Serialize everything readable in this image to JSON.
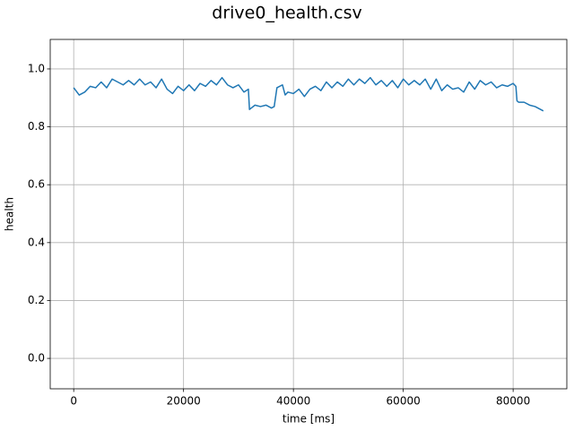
{
  "chart_data": {
    "type": "line",
    "title": "drive0_health.csv",
    "x_label": "time [ms]",
    "y_label": "health",
    "x": [
      0,
      1000,
      2000,
      3000,
      4000,
      5000,
      6000,
      7000,
      8000,
      9000,
      10000,
      11000,
      12000,
      13000,
      14000,
      15000,
      16000,
      17000,
      18000,
      19000,
      20000,
      21000,
      22000,
      23000,
      24000,
      25000,
      26000,
      27000,
      28000,
      29000,
      30000,
      31000,
      31800,
      32000,
      33000,
      34000,
      35000,
      36000,
      36500,
      37000,
      38000,
      38500,
      39000,
      40000,
      41000,
      42000,
      43000,
      44000,
      45000,
      46000,
      47000,
      48000,
      49000,
      50000,
      51000,
      52000,
      53000,
      54000,
      55000,
      56000,
      57000,
      58000,
      59000,
      60000,
      61000,
      62000,
      63000,
      64000,
      65000,
      66000,
      67000,
      68000,
      69000,
      70000,
      71000,
      72000,
      73000,
      74000,
      75000,
      76000,
      77000,
      78000,
      79000,
      80000,
      80500,
      80700,
      81000,
      82000,
      83000,
      84000,
      85000,
      85500
    ],
    "values": [
      0.935,
      0.91,
      0.92,
      0.94,
      0.935,
      0.955,
      0.935,
      0.965,
      0.955,
      0.945,
      0.96,
      0.945,
      0.965,
      0.945,
      0.955,
      0.935,
      0.965,
      0.93,
      0.915,
      0.94,
      0.925,
      0.945,
      0.925,
      0.95,
      0.94,
      0.96,
      0.945,
      0.97,
      0.945,
      0.935,
      0.945,
      0.92,
      0.93,
      0.86,
      0.875,
      0.87,
      0.875,
      0.865,
      0.87,
      0.935,
      0.945,
      0.91,
      0.92,
      0.915,
      0.93,
      0.905,
      0.93,
      0.94,
      0.925,
      0.955,
      0.935,
      0.955,
      0.94,
      0.965,
      0.945,
      0.965,
      0.95,
      0.97,
      0.945,
      0.96,
      0.94,
      0.96,
      0.935,
      0.965,
      0.945,
      0.96,
      0.945,
      0.965,
      0.93,
      0.965,
      0.925,
      0.945,
      0.93,
      0.935,
      0.92,
      0.955,
      0.93,
      0.96,
      0.945,
      0.955,
      0.935,
      0.945,
      0.94,
      0.95,
      0.94,
      0.89,
      0.885,
      0.885,
      0.875,
      0.87,
      0.86,
      0.855
    ],
    "color": "#1f77b4",
    "xlim": [
      -4275,
      89775
    ],
    "xticks": [
      0,
      20000,
      40000,
      60000,
      80000
    ],
    "ylim": [
      -0.105,
      1.102
    ],
    "yticks": [
      {
        "value": 0,
        "label": "0.0"
      },
      0.2,
      0.4,
      0.6,
      0.8,
      {
        "value": 1,
        "label": "1.0"
      }
    ],
    "grid": true
  }
}
